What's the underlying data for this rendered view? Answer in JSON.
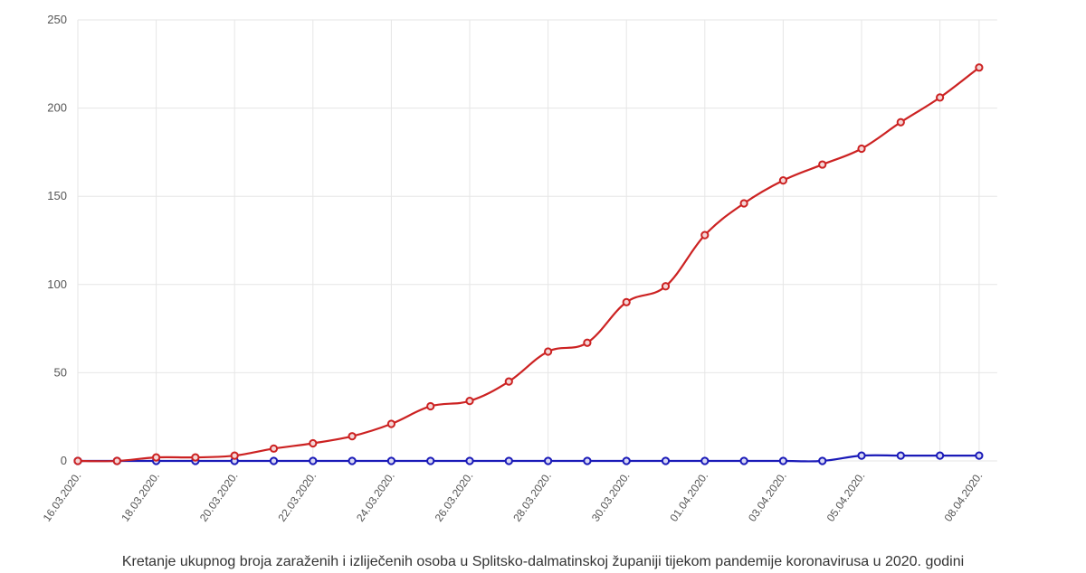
{
  "chart_data": {
    "type": "line",
    "caption": "Kretanje ukupnog broja zaraženih i izliječenih osoba u Splitsko-dalmatinskoj županiji tijekom pandemije koronavirusa u 2020. godini",
    "x": [
      "16.03.2020.",
      "17.03.2020.",
      "18.03.2020.",
      "19.03.2020.",
      "20.03.2020.",
      "21.03.2020.",
      "22.03.2020.",
      "23.03.2020.",
      "24.03.2020.",
      "25.03.2020.",
      "26.03.2020.",
      "27.03.2020.",
      "28.03.2020.",
      "29.03.2020.",
      "30.03.2020.",
      "31.03.2020.",
      "01.04.2020.",
      "02.04.2020.",
      "03.04.2020.",
      "04.04.2020.",
      "05.04.2020.",
      "06.04.2020.",
      "07.04.2020.",
      "08.04.2020."
    ],
    "x_tick_labels": [
      "16.03.2020.",
      "",
      "18.03.2020.",
      "",
      "20.03.2020.",
      "",
      "22.03.2020.",
      "",
      "24.03.2020.",
      "",
      "26.03.2020.",
      "",
      "28.03.2020.",
      "",
      "30.03.2020.",
      "",
      "01.04.2020.",
      "",
      "03.04.2020.",
      "",
      "05.04.2020.",
      "",
      "",
      "08.04.2020."
    ],
    "y_ticks": [
      "0",
      "50",
      "100",
      "150",
      "200",
      "250"
    ],
    "ylim": [
      0,
      250
    ],
    "grid": true,
    "legend": "none",
    "series": [
      {
        "color": "#cc2222",
        "values": [
          0,
          0,
          2,
          2,
          3,
          7,
          10,
          14,
          21,
          31,
          34,
          45,
          62,
          67,
          90,
          99,
          128,
          146,
          159,
          168,
          177,
          192,
          206,
          223
        ]
      },
      {
        "color": "#1a1ab8",
        "values": [
          0,
          0,
          0,
          0,
          0,
          0,
          0,
          0,
          0,
          0,
          0,
          0,
          0,
          0,
          0,
          0,
          0,
          0,
          0,
          0,
          3,
          3,
          3,
          3
        ]
      }
    ]
  }
}
